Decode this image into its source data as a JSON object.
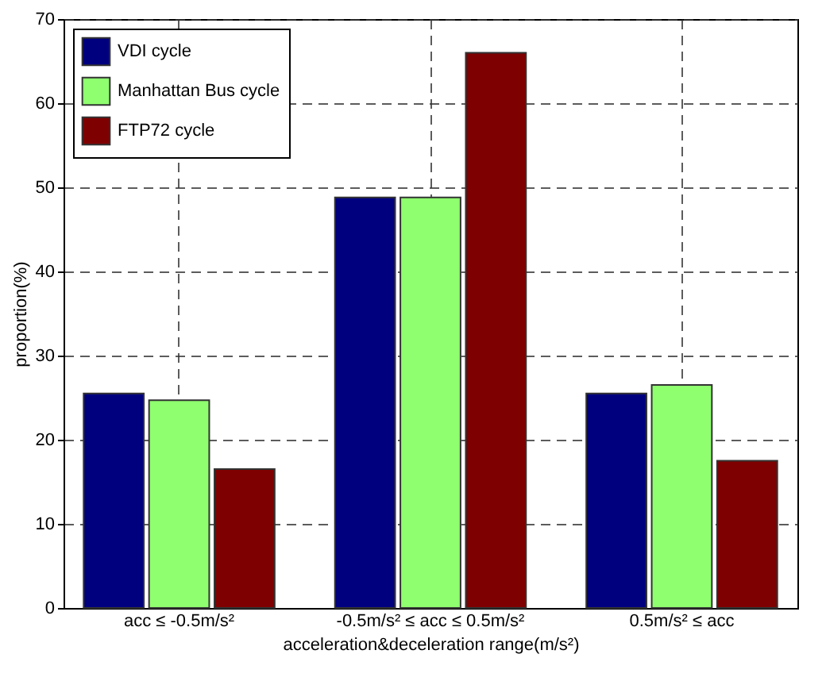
{
  "chart_data": {
    "type": "bar",
    "xlabel": "acceleration&deceleration range(m/s²)",
    "ylabel": "proportion(%)",
    "categories": [
      "acc ≤ -0.5m/s²",
      "-0.5m/s² ≤ acc ≤ 0.5m/s²",
      "0.5m/s² ≤ acc"
    ],
    "series": [
      {
        "name": "VDI cycle",
        "color": "#00007f",
        "values": [
          25.5,
          48.8,
          25.5
        ]
      },
      {
        "name": "Manhattan Bus cycle",
        "color": "#8fff6f",
        "values": [
          24.7,
          48.8,
          26.5
        ]
      },
      {
        "name": "FTP72 cycle",
        "color": "#7f0000",
        "values": [
          16.5,
          66,
          17.5
        ]
      }
    ],
    "ylim": [
      0,
      70
    ],
    "yticks": [
      0,
      10,
      20,
      30,
      40,
      50,
      60,
      70
    ],
    "grid": true,
    "legend": "top left"
  }
}
